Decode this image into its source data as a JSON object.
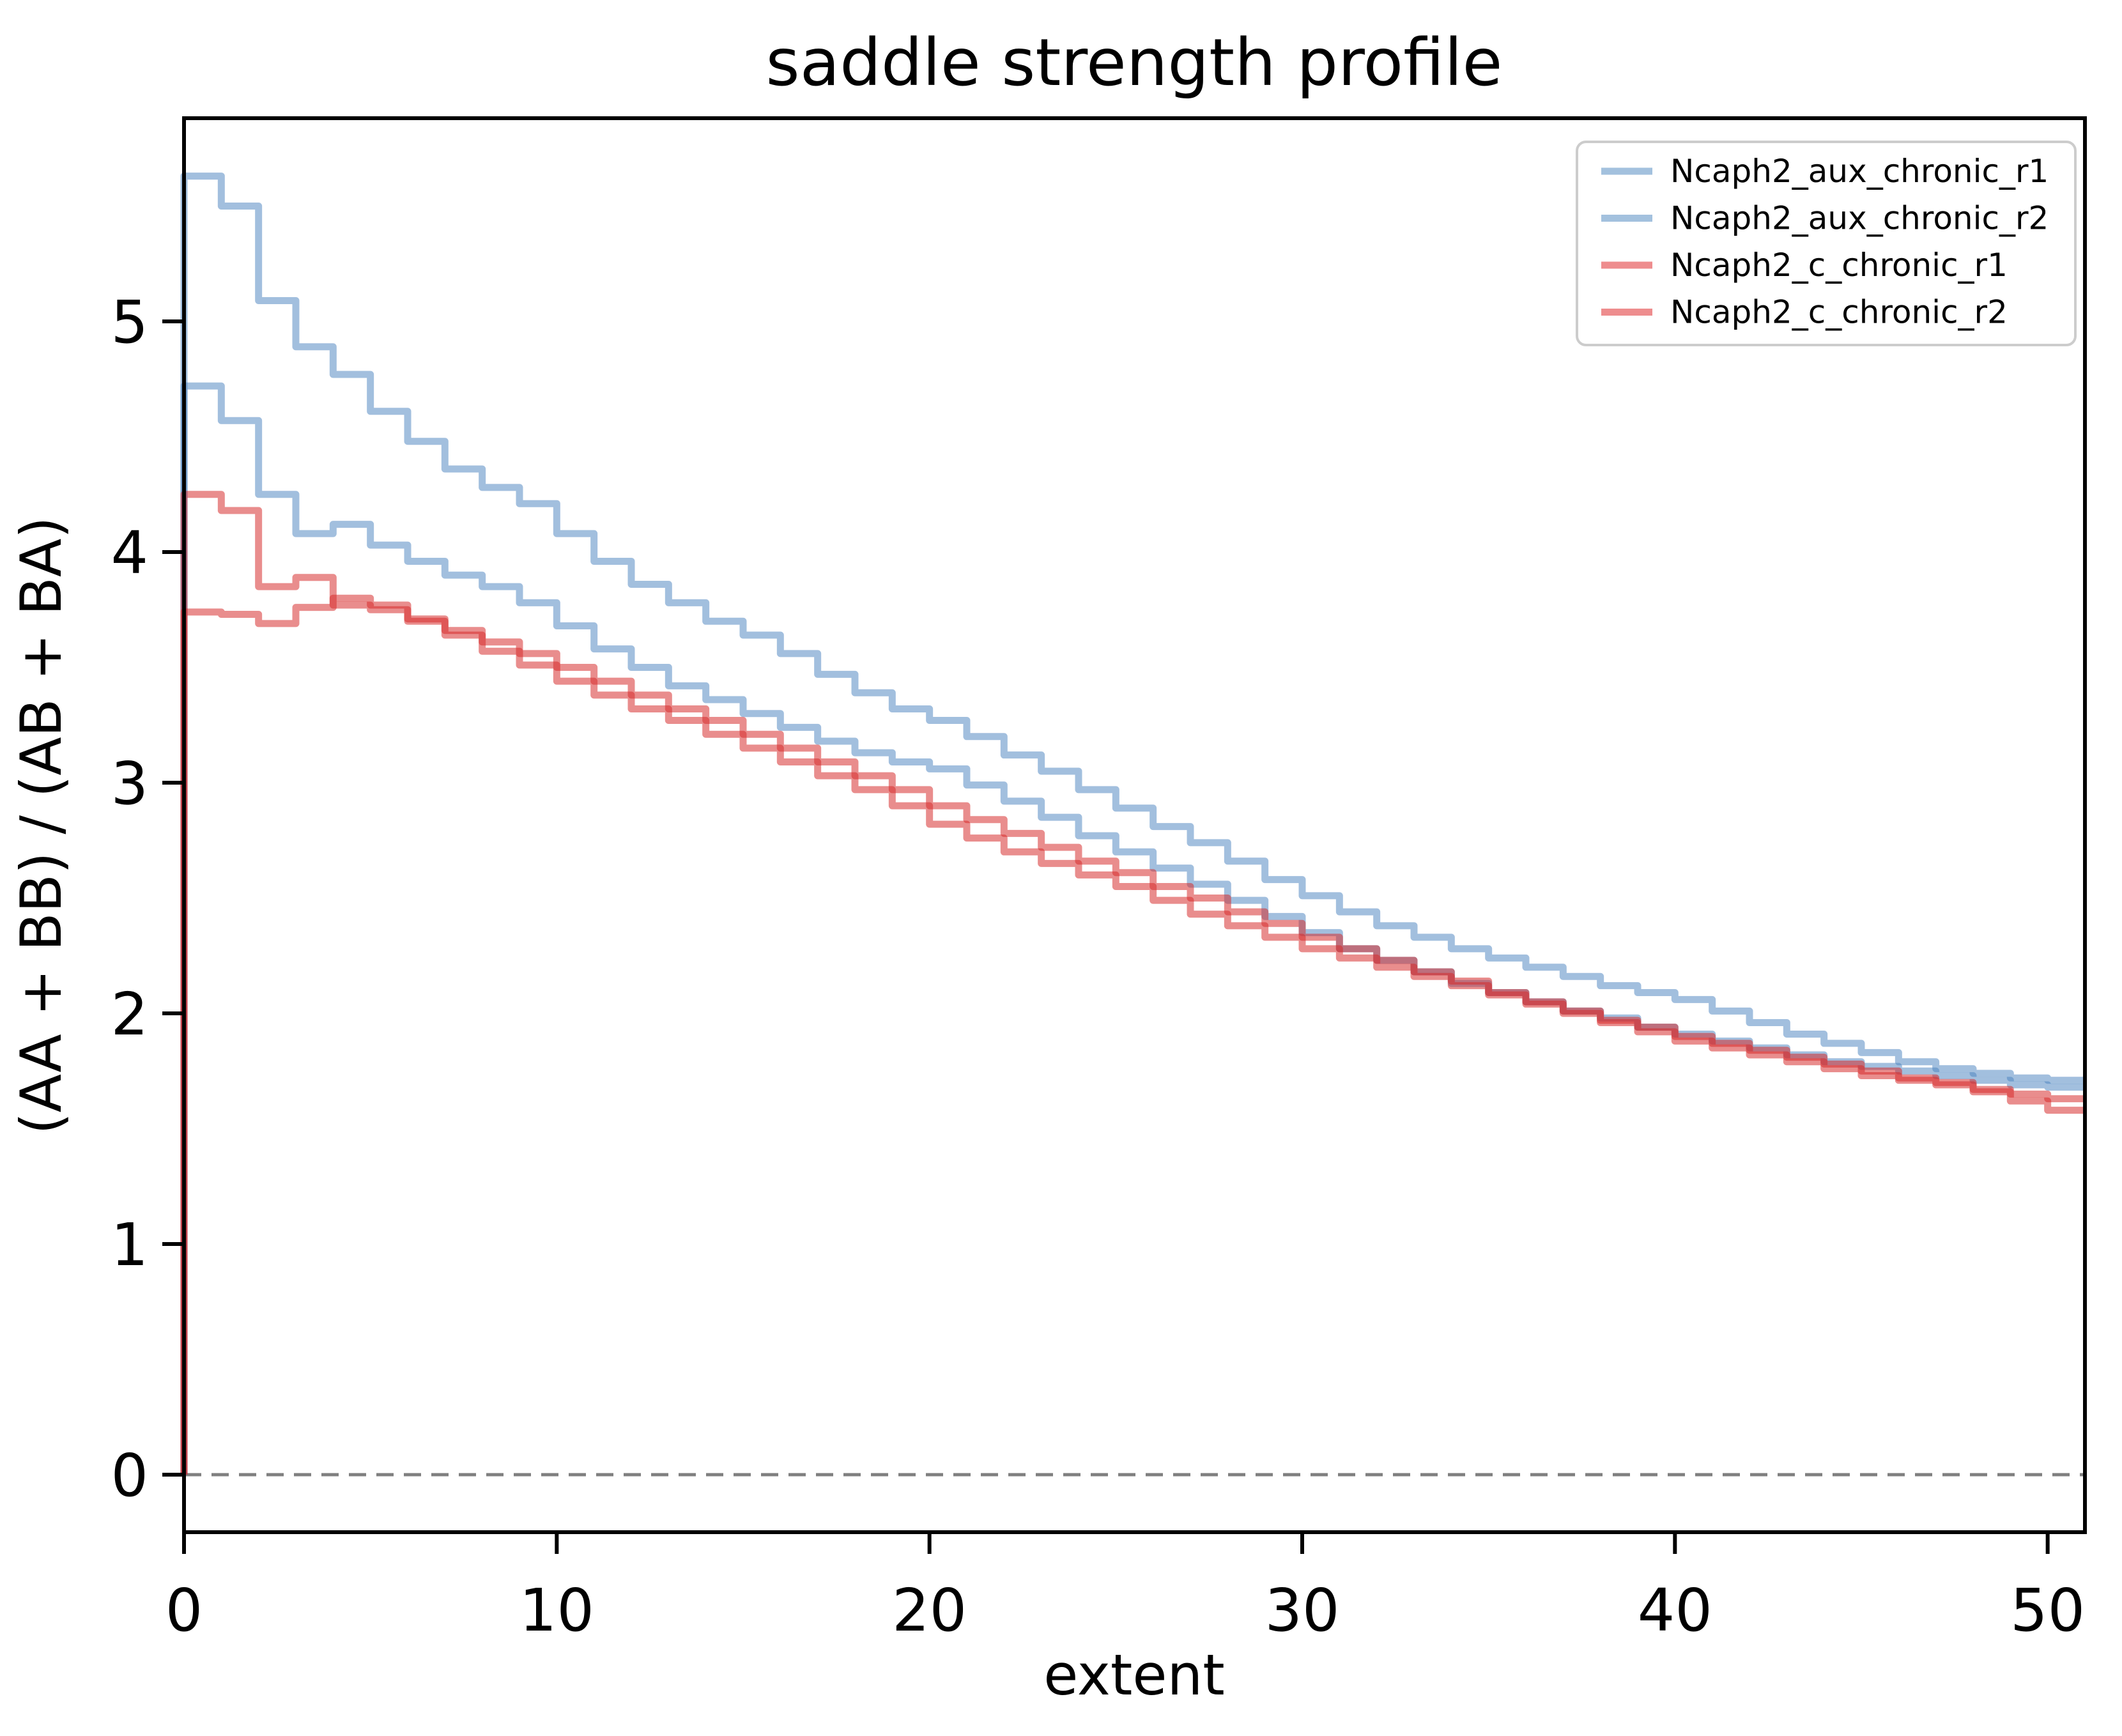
{
  "figure": {
    "title": "saddle strength profile",
    "background_color": "#ffffff"
  },
  "axes": {
    "xlabel": "extent",
    "ylabel": "(AA + BB) / (AB + BA)",
    "xticks": [
      0,
      10,
      20,
      30,
      40,
      50
    ],
    "yticks": [
      0,
      1,
      2,
      3,
      4,
      5
    ],
    "spine_color": "#000000",
    "tick_color": "#000000"
  },
  "zero_line": {
    "y": 0,
    "color": "#7f7f7f",
    "style": "dashed"
  },
  "legend": {
    "position": "upper right",
    "border_color": "#cccccc",
    "background_color": "#ffffff"
  },
  "chart_data": {
    "type": "line",
    "subtype": "stairs",
    "title": "saddle strength profile",
    "xlabel": "extent",
    "ylabel": "(AA + BB) / (AB + BA)",
    "xlim": [
      0,
      51
    ],
    "ylim": [
      -0.25,
      5.88
    ],
    "grid": false,
    "legend_position": "upper right",
    "bin_start": 0,
    "bin_width": 1,
    "baseline": 0,
    "series": [
      {
        "name": "Ncaph2_aux_chronic_r1",
        "stroke": "#4c84bf",
        "stroke_opacity": 0.52,
        "legend_color": "#a3c1de",
        "values": [
          5.63,
          5.5,
          5.09,
          4.89,
          4.77,
          4.61,
          4.48,
          4.36,
          4.28,
          4.21,
          4.08,
          3.96,
          3.86,
          3.78,
          3.7,
          3.64,
          3.56,
          3.47,
          3.39,
          3.32,
          3.27,
          3.2,
          3.12,
          3.05,
          2.97,
          2.89,
          2.81,
          2.74,
          2.66,
          2.58,
          2.51,
          2.44,
          2.38,
          2.33,
          2.28,
          2.24,
          2.2,
          2.16,
          2.12,
          2.09,
          2.06,
          2.01,
          1.96,
          1.91,
          1.87,
          1.83,
          1.79,
          1.76,
          1.74,
          1.72,
          1.71
        ]
      },
      {
        "name": "Ncaph2_aux_chronic_r2",
        "stroke": "#4c84bf",
        "stroke_opacity": 0.52,
        "legend_color": "#a3c1de",
        "values": [
          4.72,
          4.57,
          4.25,
          4.08,
          4.12,
          4.03,
          3.96,
          3.9,
          3.85,
          3.78,
          3.68,
          3.58,
          3.5,
          3.42,
          3.36,
          3.3,
          3.24,
          3.18,
          3.13,
          3.09,
          3.06,
          2.99,
          2.92,
          2.85,
          2.77,
          2.7,
          2.63,
          2.56,
          2.49,
          2.42,
          2.35,
          2.28,
          2.23,
          2.18,
          2.13,
          2.09,
          2.05,
          2.01,
          1.98,
          1.94,
          1.91,
          1.88,
          1.85,
          1.82,
          1.79,
          1.77,
          1.75,
          1.73,
          1.71,
          1.69,
          1.68
        ]
      },
      {
        "name": "Ncaph2_c_chronic_r1",
        "stroke": "#d62728",
        "stroke_opacity": 0.53,
        "legend_color": "#ee8d8e",
        "values": [
          4.25,
          4.18,
          3.85,
          3.89,
          3.77,
          3.75,
          3.71,
          3.66,
          3.61,
          3.56,
          3.5,
          3.44,
          3.38,
          3.32,
          3.27,
          3.21,
          3.15,
          3.09,
          3.03,
          2.97,
          2.9,
          2.84,
          2.78,
          2.72,
          2.66,
          2.61,
          2.55,
          2.5,
          2.44,
          2.39,
          2.33,
          2.28,
          2.23,
          2.18,
          2.14,
          2.09,
          2.05,
          2.01,
          1.97,
          1.94,
          1.9,
          1.87,
          1.84,
          1.81,
          1.78,
          1.75,
          1.72,
          1.69,
          1.67,
          1.65,
          1.63
        ]
      },
      {
        "name": "Ncaph2_c_chronic_r2",
        "stroke": "#d62728",
        "stroke_opacity": 0.53,
        "legend_color": "#ee8d8e",
        "values": [
          3.74,
          3.73,
          3.69,
          3.76,
          3.8,
          3.77,
          3.7,
          3.64,
          3.57,
          3.51,
          3.44,
          3.38,
          3.32,
          3.27,
          3.21,
          3.15,
          3.09,
          3.03,
          2.97,
          2.9,
          2.82,
          2.76,
          2.7,
          2.65,
          2.6,
          2.55,
          2.49,
          2.43,
          2.38,
          2.33,
          2.28,
          2.24,
          2.2,
          2.16,
          2.12,
          2.08,
          2.04,
          2.0,
          1.96,
          1.92,
          1.88,
          1.85,
          1.82,
          1.79,
          1.76,
          1.73,
          1.71,
          1.7,
          1.66,
          1.62,
          1.58
        ]
      }
    ]
  }
}
